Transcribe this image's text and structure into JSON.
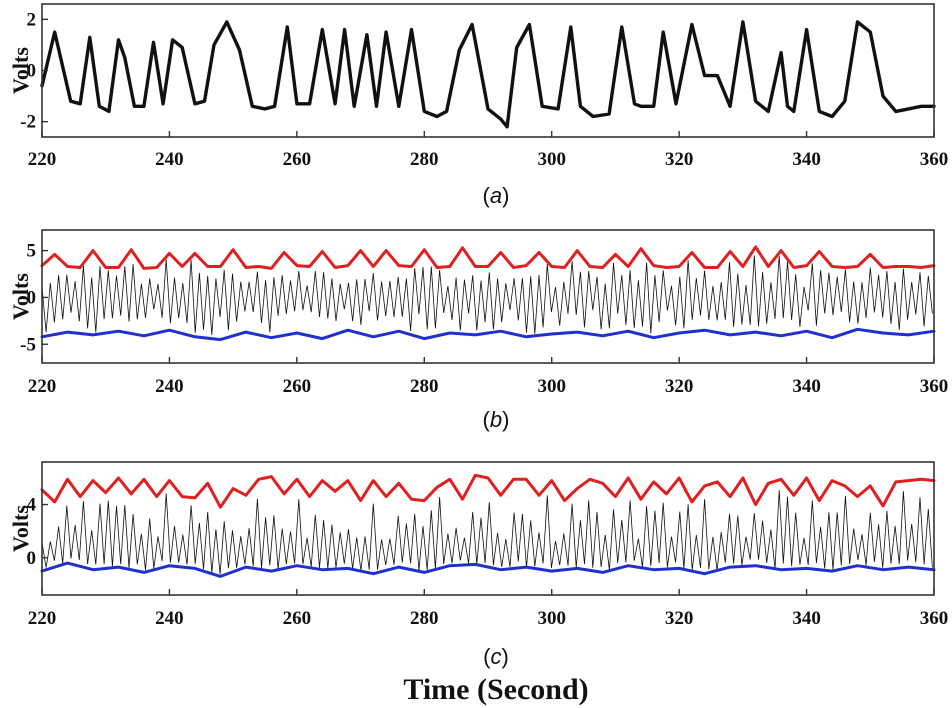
{
  "chart_data": [
    {
      "panel": "a",
      "type": "line",
      "caption_letter": "a",
      "ylabel": "Volts",
      "xlim": [
        220,
        360
      ],
      "ylim": [
        -2.6,
        2.6
      ],
      "xticks": [
        220,
        240,
        260,
        280,
        300,
        320,
        340,
        360
      ],
      "yticks": [
        -2,
        0,
        2
      ],
      "series": [
        {
          "name": "signal",
          "color": "#111111",
          "x": [
            220,
            222,
            224.5,
            226,
            227.5,
            229,
            230.5,
            232,
            233,
            234.5,
            236,
            237.5,
            239,
            240.5,
            242,
            244,
            245.5,
            247,
            249,
            251,
            253,
            255,
            256.5,
            258.5,
            260,
            262,
            264,
            266,
            267.5,
            269,
            271,
            272.5,
            274,
            276,
            278,
            280,
            282,
            283.5,
            285.5,
            287.5,
            290,
            292,
            293,
            294.5,
            296.5,
            298.5,
            301,
            303,
            304.5,
            306.5,
            309,
            311,
            313,
            314,
            316,
            317.5,
            319.5,
            322,
            324,
            326,
            328,
            330,
            332,
            334,
            336,
            337,
            338,
            340,
            342,
            344,
            346,
            348,
            350,
            352,
            354,
            356,
            358,
            360
          ],
          "y": [
            -0.6,
            1.5,
            -1.2,
            -1.3,
            1.3,
            -1.4,
            -1.6,
            1.2,
            0.5,
            -1.4,
            -1.4,
            1.1,
            -1.3,
            1.2,
            0.9,
            -1.3,
            -1.2,
            1.0,
            1.9,
            0.8,
            -1.4,
            -1.5,
            -1.4,
            1.7,
            -1.3,
            -1.3,
            1.6,
            -1.3,
            1.6,
            -1.4,
            1.4,
            -1.4,
            1.5,
            -1.4,
            1.6,
            -1.6,
            -1.8,
            -1.6,
            0.8,
            1.8,
            -1.5,
            -1.9,
            -2.2,
            0.9,
            1.8,
            -1.4,
            -1.5,
            1.7,
            -1.4,
            -1.8,
            -1.7,
            1.7,
            -1.3,
            -1.4,
            -1.4,
            1.5,
            -1.3,
            1.8,
            -0.2,
            -0.2,
            -1.4,
            1.9,
            -1.2,
            -1.6,
            0.7,
            -1.4,
            -1.6,
            1.6,
            -1.6,
            -1.8,
            -1.2,
            1.9,
            1.5,
            -1.0,
            -1.6,
            -1.5,
            -1.4,
            -1.4
          ]
        }
      ]
    },
    {
      "panel": "b",
      "type": "line",
      "caption_letter": "b",
      "ylabel": "Volts",
      "xlim": [
        220,
        360
      ],
      "ylim": [
        -7,
        7.2
      ],
      "xticks": [
        220,
        240,
        260,
        280,
        300,
        320,
        340,
        360
      ],
      "yticks": [
        -5,
        0,
        5
      ],
      "series": [
        {
          "name": "upper envelope",
          "color": "#e02020",
          "x": [
            220,
            222,
            224,
            226,
            228,
            230,
            232,
            234,
            236,
            238,
            240,
            242,
            244,
            246,
            248,
            250,
            252,
            254,
            256,
            258,
            260,
            262,
            264,
            266,
            268,
            270,
            272,
            274,
            276,
            278,
            280,
            282,
            284,
            286,
            288,
            290,
            292,
            294,
            296,
            298,
            300,
            302,
            304,
            306,
            308,
            310,
            312,
            314,
            316,
            318,
            320,
            322,
            324,
            326,
            328,
            330,
            332,
            334,
            336,
            338,
            340,
            342,
            344,
            346,
            348,
            350,
            352,
            354,
            356,
            358,
            360
          ],
          "y": [
            3.4,
            4.6,
            3.3,
            3.2,
            5.0,
            3.2,
            3.2,
            5.1,
            3.1,
            3.2,
            4.7,
            3.3,
            4.7,
            3.3,
            3.3,
            5.1,
            3.2,
            3.3,
            3.1,
            4.8,
            3.4,
            3.3,
            4.9,
            3.2,
            3.4,
            5.0,
            3.3,
            5.0,
            3.4,
            3.3,
            5.1,
            3.2,
            3.3,
            5.3,
            3.3,
            3.3,
            4.8,
            3.2,
            3.4,
            4.8,
            3.3,
            3.2,
            5.0,
            3.3,
            3.2,
            4.6,
            3.3,
            5.2,
            3.4,
            3.2,
            3.3,
            4.8,
            3.2,
            3.2,
            4.9,
            3.3,
            5.4,
            3.3,
            5.0,
            3.2,
            3.4,
            4.9,
            3.3,
            3.2,
            3.3,
            4.6,
            3.2,
            3.3,
            3.3,
            3.2,
            3.4
          ]
        },
        {
          "name": "lower envelope",
          "color": "#2030d0",
          "x": [
            220,
            224,
            228,
            232,
            236,
            240,
            244,
            248,
            252,
            256,
            260,
            264,
            268,
            272,
            276,
            280,
            284,
            288,
            292,
            296,
            300,
            304,
            308,
            312,
            316,
            320,
            324,
            328,
            332,
            336,
            340,
            344,
            348,
            352,
            356,
            360
          ],
          "y": [
            -4.2,
            -3.7,
            -4.0,
            -3.6,
            -4.1,
            -3.5,
            -4.2,
            -4.5,
            -3.7,
            -4.3,
            -3.8,
            -4.4,
            -3.5,
            -4.2,
            -3.6,
            -4.4,
            -3.8,
            -4.0,
            -3.6,
            -4.2,
            -3.9,
            -3.7,
            -4.1,
            -3.6,
            -4.3,
            -3.8,
            -3.5,
            -4.0,
            -3.7,
            -4.1,
            -3.6,
            -4.3,
            -3.4,
            -3.8,
            -4.0,
            -3.6
          ]
        }
      ],
      "carrier": {
        "name": "raw signal",
        "color": "#111111",
        "description_note": "dense oscillation between the envelopes"
      }
    },
    {
      "panel": "c",
      "type": "line",
      "caption_letter": "c",
      "ylabel": "Volts",
      "xlim": [
        220,
        360
      ],
      "ylim": [
        -2.8,
        7.2
      ],
      "xticks": [
        220,
        240,
        260,
        280,
        300,
        320,
        340,
        360
      ],
      "yticks": [
        0,
        4
      ],
      "series": [
        {
          "name": "upper envelope",
          "color": "#e02020",
          "x": [
            220,
            222,
            224,
            226,
            228,
            230,
            232,
            234,
            236,
            238,
            240,
            242,
            244,
            246,
            248,
            250,
            252,
            254,
            256,
            258,
            260,
            262,
            264,
            266,
            268,
            270,
            272,
            274,
            276,
            278,
            280,
            282,
            284,
            286,
            288,
            290,
            292,
            294,
            296,
            298,
            300,
            302,
            304,
            306,
            308,
            310,
            312,
            314,
            316,
            318,
            320,
            322,
            324,
            326,
            328,
            330,
            332,
            334,
            336,
            338,
            340,
            342,
            344,
            346,
            348,
            350,
            352,
            354,
            356,
            358,
            360
          ],
          "y": [
            5.1,
            4.2,
            5.9,
            4.6,
            5.8,
            4.9,
            6.0,
            4.8,
            5.9,
            4.6,
            5.8,
            4.6,
            4.5,
            5.6,
            3.8,
            5.2,
            4.7,
            5.9,
            6.1,
            4.8,
            5.9,
            4.6,
            5.8,
            5.0,
            5.8,
            4.3,
            5.8,
            4.6,
            5.6,
            4.4,
            4.3,
            5.3,
            5.9,
            4.4,
            6.2,
            6.0,
            4.7,
            5.9,
            5.9,
            4.7,
            5.8,
            4.3,
            5.2,
            5.9,
            5.6,
            4.6,
            6.0,
            4.4,
            5.7,
            4.8,
            6.0,
            4.2,
            5.4,
            5.7,
            4.6,
            6.0,
            4.0,
            5.6,
            5.9,
            4.7,
            6.0,
            4.3,
            5.8,
            5.4,
            4.6,
            5.4,
            3.9,
            5.7,
            5.8,
            5.9,
            5.8
          ]
        },
        {
          "name": "lower envelope",
          "color": "#2030d0",
          "x": [
            220,
            224,
            228,
            232,
            236,
            240,
            244,
            248,
            252,
            256,
            260,
            264,
            268,
            272,
            276,
            280,
            284,
            288,
            292,
            296,
            300,
            304,
            308,
            312,
            316,
            320,
            324,
            328,
            332,
            336,
            340,
            344,
            348,
            352,
            356,
            360
          ],
          "y": [
            -1.0,
            -0.4,
            -0.9,
            -0.7,
            -1.1,
            -0.6,
            -0.8,
            -1.4,
            -0.7,
            -1.0,
            -0.6,
            -0.9,
            -0.8,
            -1.2,
            -0.7,
            -1.1,
            -0.6,
            -0.5,
            -0.9,
            -0.7,
            -1.0,
            -0.8,
            -1.1,
            -0.6,
            -0.9,
            -0.8,
            -1.2,
            -0.7,
            -0.6,
            -0.9,
            -0.8,
            -1.0,
            -0.6,
            -0.9,
            -0.7,
            -0.9
          ]
        }
      ],
      "carrier": {
        "name": "raw signal",
        "color": "#111111",
        "description_note": "dense oscillation between the envelopes"
      }
    }
  ],
  "figure": {
    "xlabel": "Time (Second)"
  }
}
